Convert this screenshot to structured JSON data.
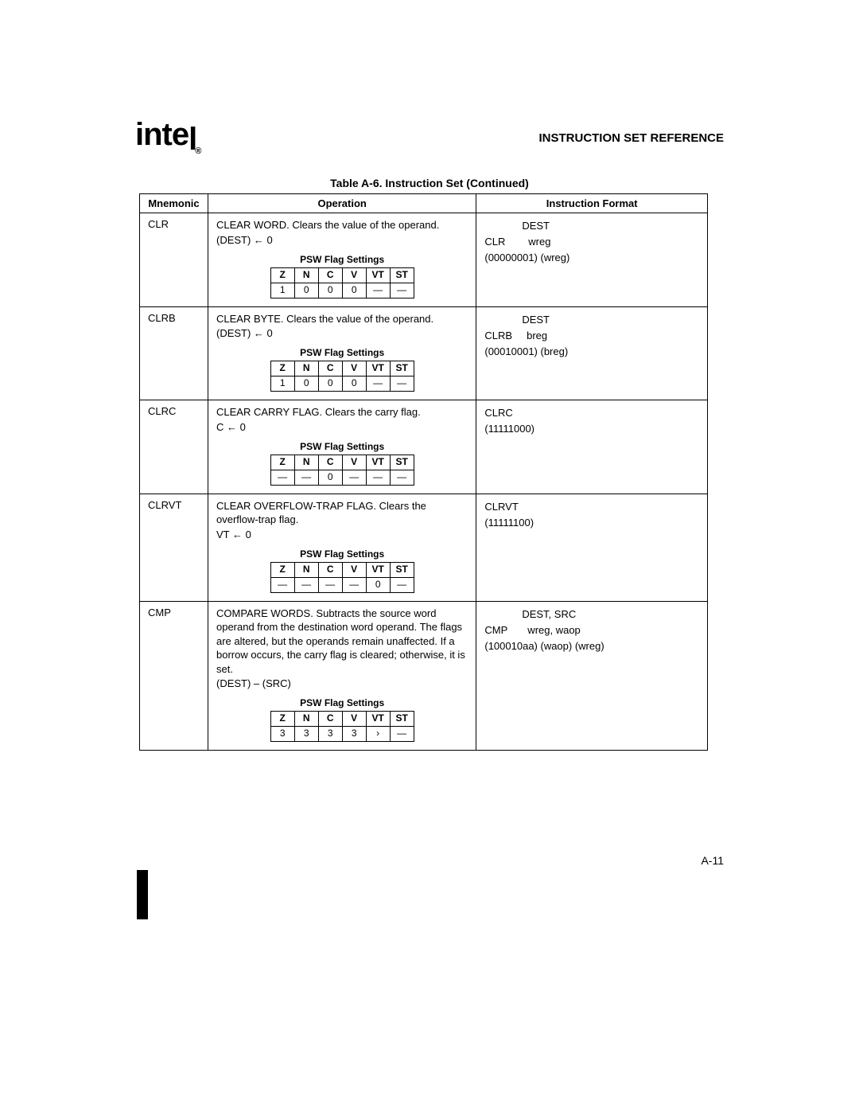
{
  "header": {
    "logo_main": "int",
    "logo_tail": "e",
    "logo_sub": "l",
    "logo_reg": "®",
    "section_title": "INSTRUCTION SET REFERENCE"
  },
  "table_caption": "Table A-6.  Instruction Set (Continued)",
  "columns": {
    "mnemonic": "Mnemonic",
    "operation": "Operation",
    "format": "Instruction Format"
  },
  "psw_caption": "PSW Flag Settings",
  "psw_headers": [
    "Z",
    "N",
    "C",
    "V",
    "VT",
    "ST"
  ],
  "rows": [
    {
      "mnemonic": "CLR",
      "desc": "CLEAR WORD. Clears the value of the operand.",
      "formula": "(DEST) ←   0",
      "psw": [
        "1",
        "0",
        "0",
        "0",
        "—",
        "—"
      ],
      "fmt1": "             DEST",
      "fmt2": "CLR        wreg",
      "fmt3": "(00000001) (wreg)"
    },
    {
      "mnemonic": "CLRB",
      "desc": "CLEAR BYTE. Clears the value of the operand.",
      "formula": "(DEST) ←   0",
      "psw": [
        "1",
        "0",
        "0",
        "0",
        "—",
        "—"
      ],
      "fmt1": "             DEST",
      "fmt2": "CLRB     breg",
      "fmt3": "(00010001) (breg)"
    },
    {
      "mnemonic": "CLRC",
      "desc": "CLEAR CARRY FLAG. Clears the carry flag.",
      "formula": "C ←   0",
      "psw": [
        "—",
        "—",
        "0",
        "—",
        "—",
        "—"
      ],
      "fmt1": "",
      "fmt2": "CLRC",
      "fmt3": "(11111000)"
    },
    {
      "mnemonic": "CLRVT",
      "desc": "CLEAR OVERFLOW-TRAP FLAG. Clears the overflow-trap flag.",
      "formula": "VT ←   0",
      "psw": [
        "—",
        "—",
        "—",
        "—",
        "0",
        "—"
      ],
      "fmt1": "",
      "fmt2": "CLRVT",
      "fmt3": "(11111100)"
    },
    {
      "mnemonic": "CMP",
      "desc": "COMPARE WORDS. Subtracts the source word operand from the destination word operand. The flags are altered, but the operands remain unaffected. If a borrow occurs, the carry flag is cleared; otherwise, it is set.",
      "formula": "(DEST) – (SRC)",
      "psw": [
        "3",
        "3",
        "3",
        "3",
        "›",
        "—"
      ],
      "fmt1": "             DEST, SRC",
      "fmt2": "CMP       wreg, waop",
      "fmt3": "(100010aa) (waop) (wreg)"
    }
  ],
  "page_number": "A-11"
}
